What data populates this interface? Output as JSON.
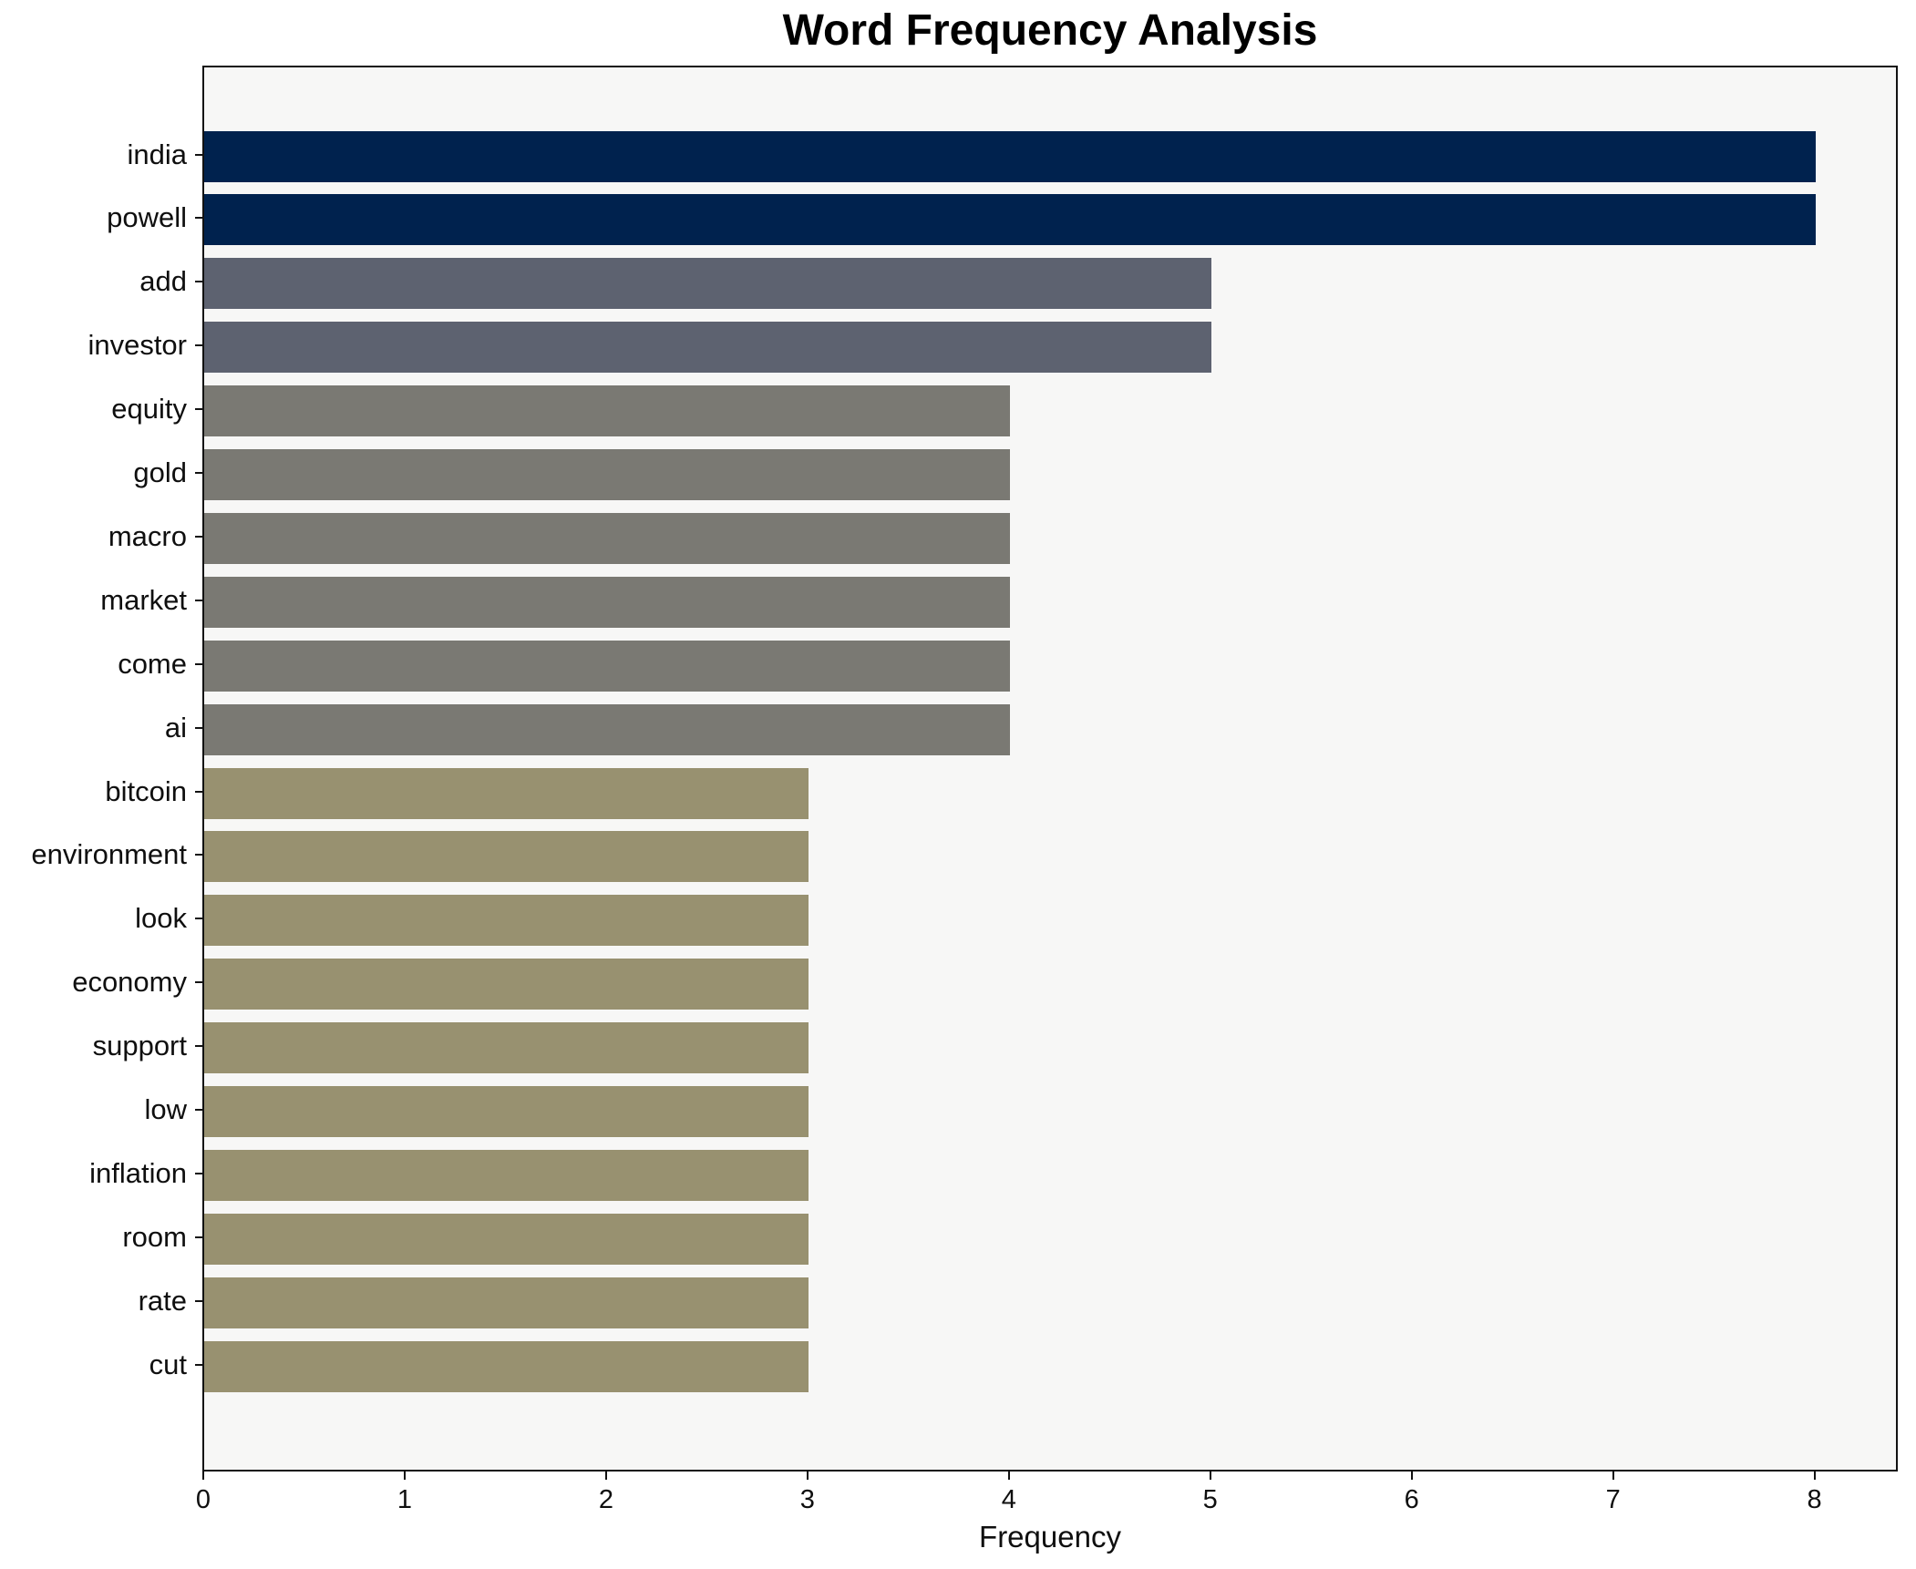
{
  "chart_data": {
    "type": "bar",
    "orientation": "horizontal",
    "title": "Word Frequency Analysis",
    "xlabel": "Frequency",
    "ylabel": "",
    "categories": [
      "india",
      "powell",
      "add",
      "investor",
      "equity",
      "gold",
      "macro",
      "market",
      "come",
      "ai",
      "bitcoin",
      "environment",
      "look",
      "economy",
      "support",
      "low",
      "inflation",
      "room",
      "rate",
      "cut"
    ],
    "values": [
      8,
      8,
      5,
      5,
      4,
      4,
      4,
      4,
      4,
      4,
      3,
      3,
      3,
      3,
      3,
      3,
      3,
      3,
      3,
      3
    ],
    "bar_colors": [
      "#00224e",
      "#00224e",
      "#5d6270",
      "#5d6270",
      "#7a7973",
      "#7a7973",
      "#7a7973",
      "#7a7973",
      "#7a7973",
      "#7a7973",
      "#989170",
      "#989170",
      "#989170",
      "#989170",
      "#989170",
      "#989170",
      "#989170",
      "#989170",
      "#989170",
      "#989170"
    ],
    "xlim": [
      0,
      8.4
    ],
    "x_ticks": [
      "0",
      "1",
      "2",
      "3",
      "4",
      "5",
      "6",
      "7",
      "8"
    ],
    "grid": false,
    "legend": null,
    "plot_background": "#f7f7f6",
    "figure_background": "#ffffff",
    "spine_color": "#121212",
    "text_color": "#0f0f0f"
  }
}
